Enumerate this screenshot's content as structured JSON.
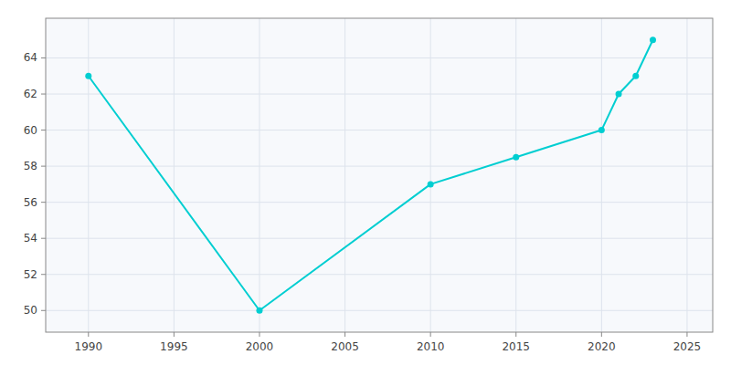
{
  "chart_data": {
    "type": "line",
    "x": [
      1990,
      2000,
      2010,
      2015,
      2020,
      2021,
      2022,
      2023
    ],
    "values": [
      63.0,
      50.0,
      57.0,
      58.5,
      60.0,
      62.0,
      63.0,
      65.0
    ],
    "color": "#00CED1",
    "marker": "circle",
    "xlim": [
      1987.5,
      2026.5
    ],
    "ylim": [
      48.8,
      66.2
    ],
    "xticks": [
      1990,
      1995,
      2000,
      2005,
      2010,
      2015,
      2020,
      2025
    ],
    "yticks": [
      50,
      52,
      54,
      56,
      58,
      60,
      62,
      64
    ],
    "grid": true
  }
}
